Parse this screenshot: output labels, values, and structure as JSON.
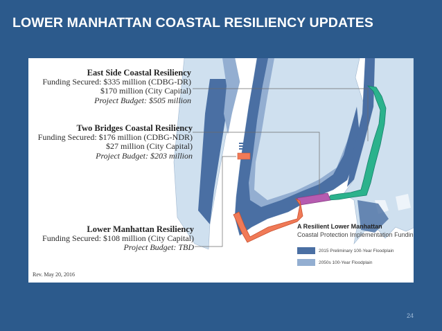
{
  "slide": {
    "title": "LOWER MANHATTAN COASTAL RESILIENCY UPDATES",
    "page_number": "24"
  },
  "projects": [
    {
      "name": "East Side Coastal Resiliency",
      "funding_line_1": "Funding Secured: $335 million (CDBG-DR)",
      "funding_line_2": "$170 million (City Capital)",
      "budget": "Project Budget: $505 million",
      "color": "#2bb28c"
    },
    {
      "name": "Two Bridges Coastal Resiliency",
      "funding_line_1": "Funding Secured: $176 million (CDBG-NDR)",
      "funding_line_2": "$27 million (City Capital)",
      "budget": "Project Budget: $203 million",
      "color": "#b65bb0"
    },
    {
      "name": "Lower Manhattan Resiliency",
      "funding_line_1": "Funding Secured: $108 million (City Capital)",
      "budget": "Project Budget: TBD",
      "color": "#f07a57"
    }
  ],
  "legend": {
    "title": "A Resilient Lower Manhattan",
    "subtitle": "Coastal Protection Implementation Funding",
    "items": [
      {
        "label": "2015 Preliminary 100-Year Floodplain",
        "color": "#4a6fa3"
      },
      {
        "label": "2050s 100-Year Floodplain",
        "color": "#93aed1"
      }
    ]
  },
  "revision": "Rev. May 20, 2016",
  "map_colors": {
    "land": "#cfe0ef",
    "water": "#ffffff",
    "floodplain_2015": "#4a6fa3",
    "floodplain_2050": "#93aed1"
  }
}
